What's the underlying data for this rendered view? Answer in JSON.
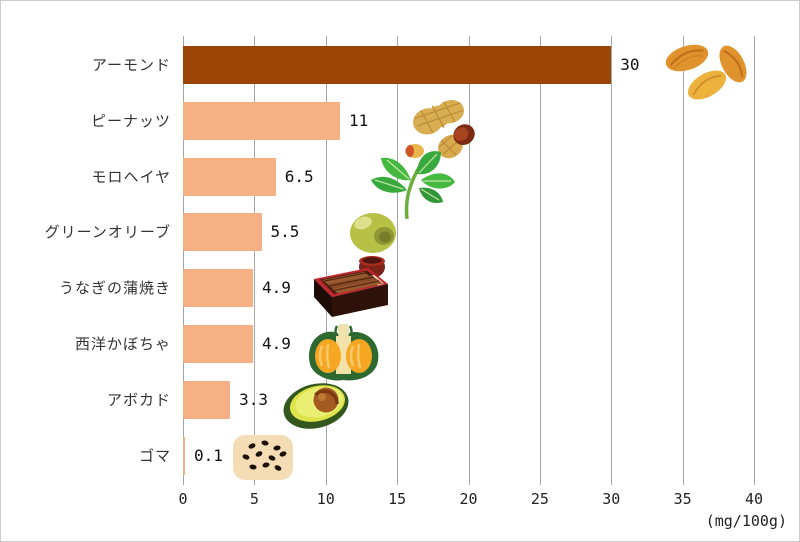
{
  "chart_data": {
    "type": "bar",
    "orientation": "horizontal",
    "title": "",
    "categories": [
      "アーモンド",
      "ピーナッツ",
      "モロヘイヤ",
      "グリーンオリーブ",
      "うなぎの蒲焼き",
      "西洋かぼちゃ",
      "アボカド",
      "ゴマ"
    ],
    "values": [
      30,
      11,
      6.5,
      5.5,
      4.9,
      4.9,
      3.3,
      0.1
    ],
    "value_labels": [
      "30",
      "11",
      "6.5",
      "5.5",
      "4.9",
      "4.9",
      "3.3",
      "0.1"
    ],
    "icons": [
      "almond-icon",
      "peanut-icon",
      "mulukhiyah-icon",
      "green-olive-icon",
      "grilled-eel-icon",
      "pumpkin-icon",
      "avocado-icon",
      "sesame-icon"
    ],
    "x_ticks": [
      0,
      5,
      10,
      15,
      20,
      25,
      30,
      35,
      40
    ],
    "xlim": [
      0,
      40
    ],
    "grid": true,
    "legend": false,
    "unit_label": "(mg/100g)"
  },
  "colors": {
    "bar_highlight": "#9a4506",
    "bar_normal": "#f5b183",
    "gridline": "#a6a6a6",
    "border": "#cccccc",
    "text": "#333333"
  }
}
